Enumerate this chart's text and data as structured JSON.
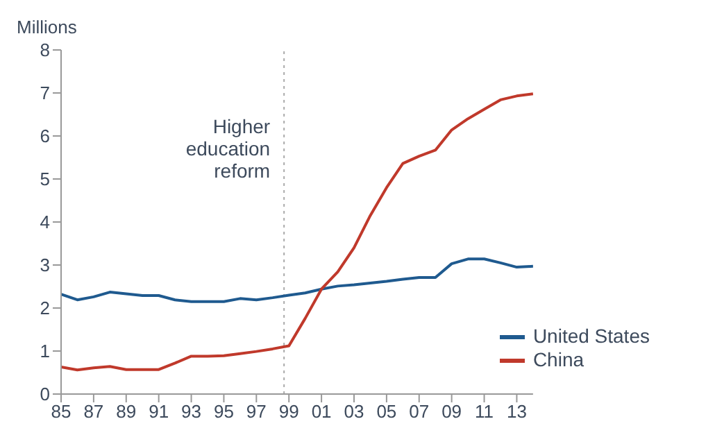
{
  "chart_data": {
    "type": "line",
    "ylabel": "Millions",
    "x": [
      1985,
      1986,
      1987,
      1988,
      1989,
      1990,
      1991,
      1992,
      1993,
      1994,
      1995,
      1996,
      1997,
      1998,
      1999,
      2000,
      2001,
      2002,
      2003,
      2004,
      2005,
      2006,
      2007,
      2008,
      2009,
      2010,
      2011,
      2012,
      2013,
      2014
    ],
    "series": [
      {
        "name": "United States",
        "color": "#1f5a8f",
        "values": [
          2.32,
          2.19,
          2.26,
          2.37,
          2.33,
          2.29,
          2.29,
          2.19,
          2.15,
          2.15,
          2.15,
          2.22,
          2.19,
          2.24,
          2.3,
          2.35,
          2.44,
          2.51,
          2.54,
          2.58,
          2.62,
          2.67,
          2.71,
          2.71,
          3.03,
          3.14,
          3.14,
          3.05,
          2.95,
          2.97
        ]
      },
      {
        "name": "China",
        "color": "#c0392b",
        "values": [
          0.63,
          0.56,
          0.61,
          0.64,
          0.57,
          0.57,
          0.57,
          0.72,
          0.88,
          0.88,
          0.89,
          0.94,
          0.99,
          1.05,
          1.12,
          1.76,
          2.44,
          2.84,
          3.4,
          4.15,
          4.8,
          5.36,
          5.53,
          5.67,
          6.14,
          6.4,
          6.62,
          6.84,
          6.93,
          6.98
        ]
      }
    ],
    "xlim": [
      1985,
      2014
    ],
    "xticks": [
      {
        "value": 1985,
        "label": "85"
      },
      {
        "value": 1987,
        "label": "87"
      },
      {
        "value": 1989,
        "label": "89"
      },
      {
        "value": 1991,
        "label": "91"
      },
      {
        "value": 1993,
        "label": "93"
      },
      {
        "value": 1995,
        "label": "95"
      },
      {
        "value": 1997,
        "label": "97"
      },
      {
        "value": 1999,
        "label": "99"
      },
      {
        "value": 2001,
        "label": "01"
      },
      {
        "value": 2003,
        "label": "03"
      },
      {
        "value": 2005,
        "label": "05"
      },
      {
        "value": 2007,
        "label": "07"
      },
      {
        "value": 2009,
        "label": "09"
      },
      {
        "value": 2011,
        "label": "11"
      },
      {
        "value": 2013,
        "label": "13"
      }
    ],
    "ylim": [
      0,
      8
    ],
    "yticks": [
      0,
      1,
      2,
      3,
      4,
      5,
      6,
      7,
      8
    ],
    "ref_lines": [
      {
        "axis": "x",
        "value": 1998.7,
        "label": "Higher education reform",
        "color": "#aaaaaa",
        "line_style": "dotted"
      }
    ],
    "grid": false,
    "legend": "bottom right",
    "marker": "none",
    "line_style": "solid"
  }
}
